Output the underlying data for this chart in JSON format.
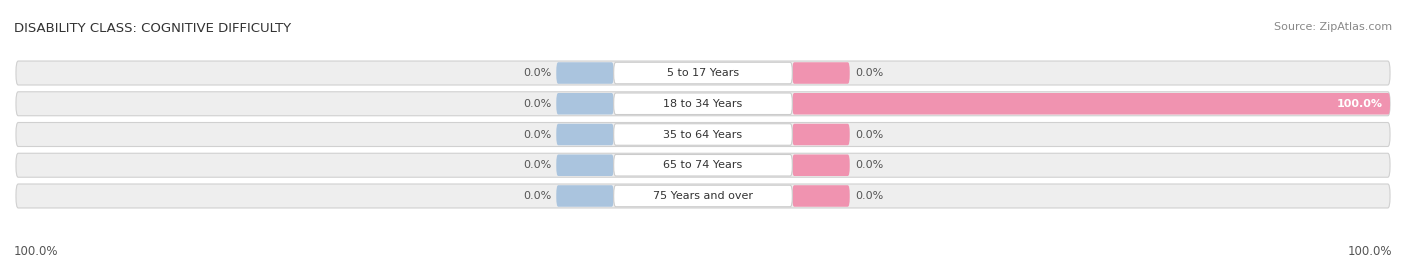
{
  "title": "DISABILITY CLASS: COGNITIVE DIFFICULTY",
  "source": "Source: ZipAtlas.com",
  "categories": [
    "5 to 17 Years",
    "18 to 34 Years",
    "35 to 64 Years",
    "65 to 74 Years",
    "75 Years and over"
  ],
  "male_values": [
    0.0,
    0.0,
    0.0,
    0.0,
    0.0
  ],
  "female_values": [
    0.0,
    100.0,
    0.0,
    0.0,
    0.0
  ],
  "male_color": "#aac4de",
  "female_color": "#f093b0",
  "row_bg_color": "#eeeeee",
  "row_bg_edge_color": "#dddddd",
  "label_left": [
    "0.0%",
    "0.0%",
    "0.0%",
    "0.0%",
    "0.0%"
  ],
  "label_right": [
    "0.0%",
    "100.0%",
    "0.0%",
    "0.0%",
    "0.0%"
  ],
  "bottom_left": "100.0%",
  "bottom_right": "100.0%",
  "max_val": 100.0,
  "figsize": [
    14.06,
    2.69
  ],
  "dpi": 100
}
